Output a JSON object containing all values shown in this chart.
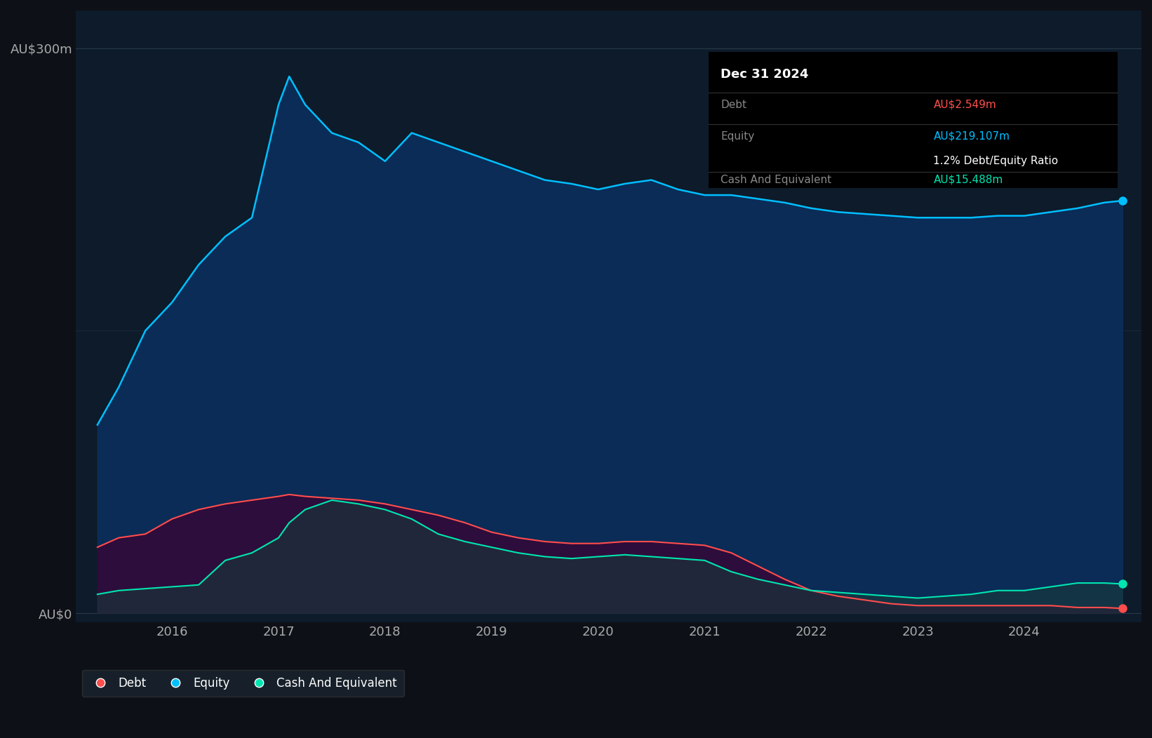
{
  "bg_color": "#0d1117",
  "plot_bg_color": "#0d1b2a",
  "equity_color": "#00bfff",
  "debt_color": "#ff4d4d",
  "cash_color": "#00e5b0",
  "equity_fill_color": "#0a3060",
  "debt_fill_color": "#3d0030",
  "cash_fill_color": "#1a3a3a",
  "ylabel_300": "AU$300m",
  "ylabel_0": "AU$0",
  "tooltip_date": "Dec 31 2024",
  "tooltip_debt_label": "Debt",
  "tooltip_debt_value": "AU$2.549m",
  "tooltip_equity_label": "Equity",
  "tooltip_equity_value": "AU$219.107m",
  "tooltip_ratio": "1.2% Debt/Equity Ratio",
  "tooltip_cash_label": "Cash And Equivalent",
  "tooltip_cash_value": "AU$15.488m",
  "legend_debt": "Debt",
  "legend_equity": "Equity",
  "legend_cash": "Cash And Equivalent",
  "x_ticks": [
    2016,
    2017,
    2018,
    2019,
    2020,
    2021,
    2022,
    2023,
    2024
  ],
  "years": [
    2015.3,
    2015.5,
    2015.75,
    2016.0,
    2016.25,
    2016.5,
    2016.75,
    2017.0,
    2017.1,
    2017.25,
    2017.5,
    2017.75,
    2018.0,
    2018.25,
    2018.5,
    2018.75,
    2019.0,
    2019.25,
    2019.5,
    2019.75,
    2020.0,
    2020.25,
    2020.5,
    2020.75,
    2021.0,
    2021.25,
    2021.5,
    2021.75,
    2022.0,
    2022.25,
    2022.5,
    2022.75,
    2023.0,
    2023.25,
    2023.5,
    2023.75,
    2024.0,
    2024.25,
    2024.5,
    2024.75,
    2024.92
  ],
  "equity": [
    100,
    120,
    150,
    165,
    185,
    200,
    210,
    270,
    285,
    270,
    255,
    250,
    240,
    255,
    250,
    245,
    240,
    235,
    230,
    228,
    225,
    228,
    230,
    225,
    222,
    222,
    220,
    218,
    215,
    213,
    212,
    211,
    210,
    210,
    210,
    211,
    211,
    213,
    215,
    218,
    219
  ],
  "debt": [
    35,
    40,
    42,
    50,
    55,
    58,
    60,
    62,
    63,
    62,
    61,
    60,
    58,
    55,
    52,
    48,
    43,
    40,
    38,
    37,
    37,
    38,
    38,
    37,
    36,
    32,
    25,
    18,
    12,
    9,
    7,
    5,
    4,
    4,
    4,
    4,
    4,
    4,
    3,
    3,
    2.5
  ],
  "cash": [
    10,
    12,
    13,
    14,
    15,
    28,
    32,
    40,
    48,
    55,
    60,
    58,
    55,
    50,
    42,
    38,
    35,
    32,
    30,
    29,
    30,
    31,
    30,
    29,
    28,
    22,
    18,
    15,
    12,
    11,
    10,
    9,
    8,
    9,
    10,
    12,
    12,
    14,
    16,
    16,
    15.5
  ]
}
